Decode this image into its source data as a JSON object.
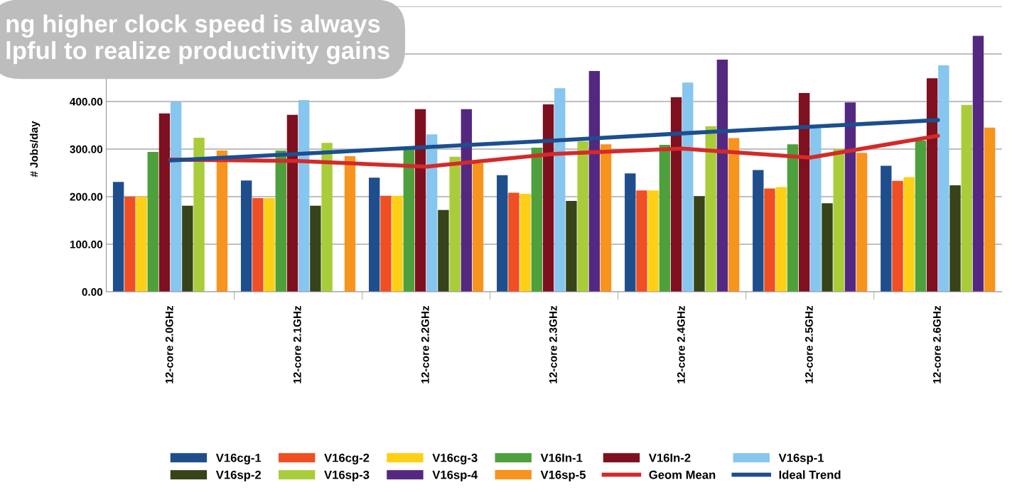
{
  "chart_data": {
    "type": "bar",
    "ylabel": "# Jobs/day",
    "annotations": [
      "ng higher clock speed is always\nlpful to realize productivity gains"
    ],
    "categories": [
      "12-core 2.0GHz",
      "12-core 2.1GHz",
      "12-core 2.2GHz",
      "12-core 2.3GHz",
      "12-core 2.4GHz",
      "12-core 2.5GHz",
      "12-core 2.6GHz"
    ],
    "ylim": [
      0,
      600
    ],
    "yticks": [
      {
        "value": 0,
        "label": "0.00"
      },
      {
        "value": 100,
        "label": "100.00"
      },
      {
        "value": 200,
        "label": "200.00"
      },
      {
        "value": 300,
        "label": "300.00"
      },
      {
        "value": 400,
        "label": "400.00"
      },
      {
        "value": 500,
        "label": null
      },
      {
        "value": 600,
        "label": null
      }
    ],
    "grid": "y",
    "legend": "bottom",
    "series": [
      {
        "name": "V16cg-1",
        "color": "#1f4e8c",
        "values": [
          231,
          234,
          240,
          245,
          249,
          256,
          265
        ]
      },
      {
        "name": "V16cg-2",
        "color": "#f04e23",
        "values": [
          200,
          197,
          202,
          208,
          213,
          217,
          233
        ]
      },
      {
        "name": "V16cg-3",
        "color": "#fdd017",
        "values": [
          200,
          197,
          202,
          206,
          213,
          220,
          241
        ]
      },
      {
        "name": "V16In-1",
        "color": "#4ea03c",
        "values": [
          294,
          297,
          300,
          303,
          309,
          310,
          318
        ]
      },
      {
        "name": "V16In-2",
        "color": "#7e1020",
        "values": [
          375,
          372,
          384,
          394,
          409,
          418,
          449
        ]
      },
      {
        "name": "V16sp-1",
        "color": "#87c6ee",
        "values": [
          400,
          403,
          331,
          428,
          440,
          344,
          476
        ]
      },
      {
        "name": "V16sp-2",
        "color": "#374318",
        "values": [
          181,
          181,
          172,
          191,
          201,
          186,
          224
        ]
      },
      {
        "name": "V16sp-3",
        "color": "#a9cd3a",
        "values": [
          324,
          313,
          284,
          316,
          348,
          300,
          393
        ]
      },
      {
        "name": "V16sp-4",
        "color": "#542880",
        "values": [
          null,
          null,
          384,
          464,
          488,
          398,
          538
        ]
      },
      {
        "name": "V16sp-5",
        "color": "#f7941e",
        "values": [
          297,
          285,
          270,
          310,
          323,
          292,
          345
        ]
      },
      {
        "name": "Geom Mean",
        "type": "line",
        "color": "#d42a2a",
        "values": [
          278,
          275,
          263,
          290,
          301,
          282,
          328
        ]
      },
      {
        "name": "Ideal Trend",
        "type": "line",
        "color": "#1b4f8f",
        "values": [
          276,
          290,
          304,
          318,
          333,
          347,
          361
        ]
      }
    ]
  }
}
